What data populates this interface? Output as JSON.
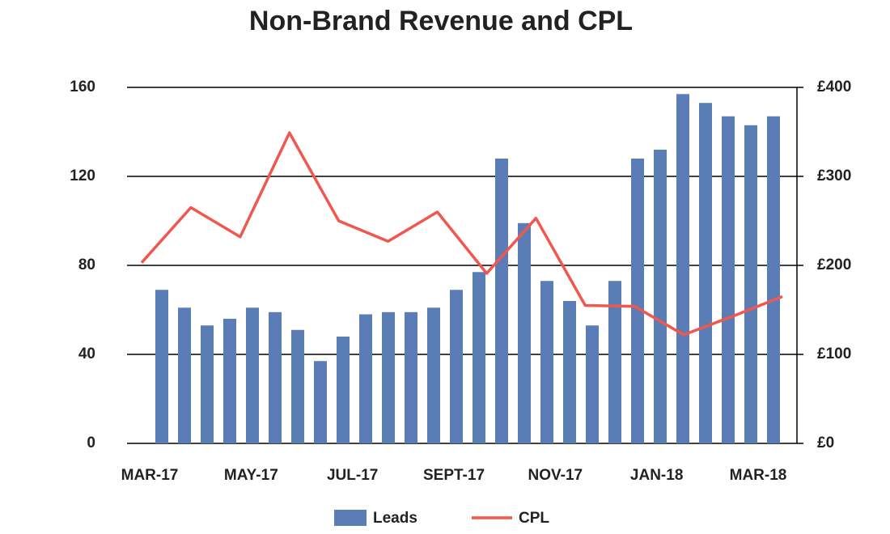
{
  "chart_data": {
    "type": "bar-line",
    "title": "Non-Brand Revenue and CPL",
    "xlabels": [
      "MAR-17",
      "MAY-17",
      "JUL-17",
      "SEPT-17",
      "NOV-17",
      "JAN-18",
      "MAR-18"
    ],
    "series": [
      {
        "name": "Leads",
        "type": "bar",
        "color": "#5a7db5",
        "values": [
          69,
          61,
          53,
          56,
          61,
          59,
          51,
          37,
          48,
          58,
          59,
          59,
          61,
          69,
          77,
          128,
          99,
          73,
          64,
          53,
          73,
          128,
          132,
          157,
          153,
          147,
          143,
          147
        ]
      },
      {
        "name": "CPL",
        "type": "line",
        "axis": "y2",
        "color": "#f0574f",
        "values": [
          203,
          265,
          232,
          349,
          250,
          227,
          260,
          191,
          253,
          155,
          154,
          122,
          143,
          165
        ]
      }
    ],
    "ylim": [
      0,
      160
    ],
    "yticks": [
      0,
      40,
      80,
      120,
      160
    ],
    "y2lim": [
      0,
      400
    ],
    "y2ticks": [
      {
        "value": 0,
        "label": "£0"
      },
      {
        "value": 100,
        "label": "£100"
      },
      {
        "value": 200,
        "label": "£200"
      },
      {
        "value": 300,
        "label": "£300"
      },
      {
        "value": 400,
        "label": "£400"
      }
    ],
    "grid": true,
    "legend": "bottom"
  }
}
